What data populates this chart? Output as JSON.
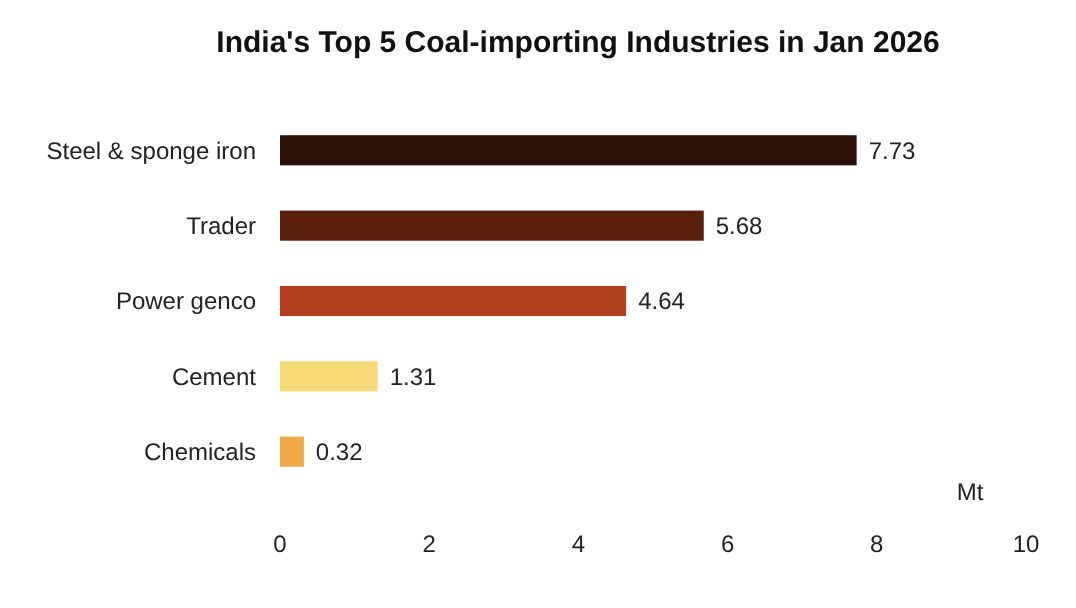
{
  "chart_data": {
    "type": "bar",
    "orientation": "horizontal",
    "title": "India's Top 5 Coal-importing Industries in Jan 2026",
    "xlabel": "Mt",
    "categories": [
      "Steel & sponge iron",
      "Trader",
      "Power genco",
      "Cement",
      "Chemicals"
    ],
    "values": [
      7.73,
      5.68,
      4.64,
      1.31,
      0.32
    ],
    "colors": [
      "#2e0f08",
      "#5a1f0d",
      "#b33f1e",
      "#f6da78",
      "#efa845"
    ],
    "xlim": [
      0,
      10
    ],
    "xticks": [
      0,
      2,
      4,
      6,
      8,
      10
    ],
    "data_labels": true,
    "grid": false
  }
}
